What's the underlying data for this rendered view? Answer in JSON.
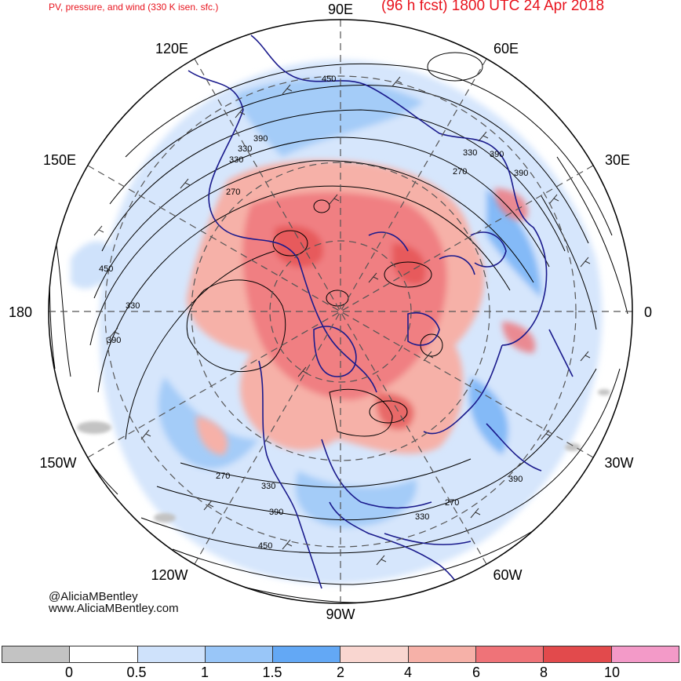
{
  "header": {
    "left_title": "PV, pressure, and wind (330 K isen. sfc.)",
    "right_title": "(96 h fcst) 1800 UTC 24 Apr 2018"
  },
  "longitude_labels": {
    "top": "90E",
    "top_right": "60E",
    "right_upper": "30E",
    "right": "0",
    "right_lower": "30W",
    "bottom_right": "60W",
    "bottom": "90W",
    "bottom_left": "120W",
    "left_lower": "150W",
    "left": "180",
    "left_upper": "150E",
    "top_left": "120E"
  },
  "contour_labels": [
    "450",
    "390",
    "330",
    "270",
    "390",
    "330",
    "270",
    "450",
    "330",
    "390",
    "270",
    "330",
    "390",
    "390",
    "330",
    "270",
    "330",
    "390",
    "450"
  ],
  "credit": {
    "handle": "@AliciaMBentley",
    "website": "www.AliciaMBentley.com"
  },
  "legend": {
    "colors": [
      "#c3c3c3",
      "#ffffff",
      "#cfe2fb",
      "#99c6f8",
      "#63a8f5",
      "#f9d6d0",
      "#f6b1a8",
      "#ef7378",
      "#e24a4c",
      "#f39ac8"
    ],
    "ticks": [
      "0",
      "0.5",
      "1",
      "1.5",
      "2",
      "4",
      "6",
      "8",
      "10"
    ]
  },
  "theme": {
    "title_color": "#e8141e",
    "coast_color": "#1a1a8c",
    "contour_color": "#000000",
    "grid_color": "#555555"
  }
}
